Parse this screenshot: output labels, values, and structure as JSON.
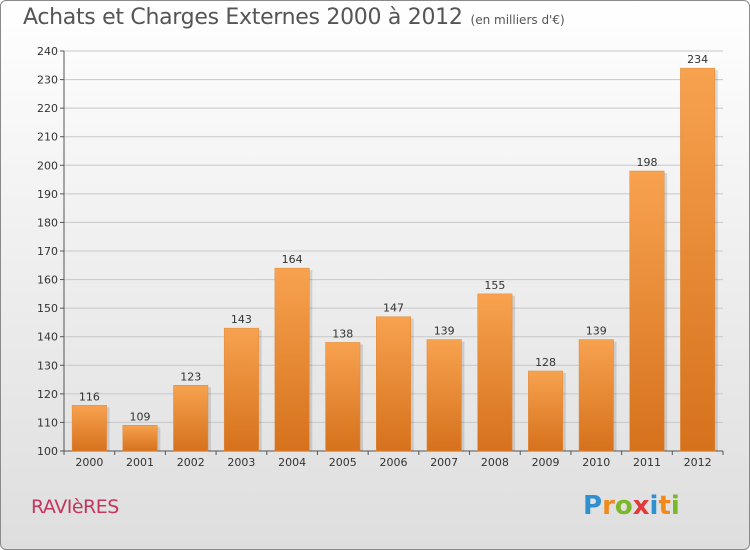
{
  "title": {
    "main": "Achats et Charges Externes 2000 à 2012",
    "unit": "(en milliers d'€)"
  },
  "commune": "RAVIèRES",
  "logo": {
    "letters": [
      "P",
      "r",
      "o",
      "x",
      "i",
      "t",
      "i"
    ],
    "colors": [
      "#2f8fd1",
      "#f08a1c",
      "#7ab829",
      "#e23a3a",
      "#2f8fd1",
      "#f08a1c",
      "#7ab829"
    ]
  },
  "colors": {
    "bar_top": "#f7a24f",
    "bar_bottom": "#d6711c",
    "grid": "#c8c8c8"
  },
  "chart_data": {
    "type": "bar",
    "title": "Achats et Charges Externes 2000 à 2012",
    "subtitle": "(en milliers d'€)",
    "categories": [
      "2000",
      "2001",
      "2002",
      "2003",
      "2004",
      "2005",
      "2006",
      "2007",
      "2008",
      "2009",
      "2010",
      "2011",
      "2012"
    ],
    "values": [
      116,
      109,
      123,
      143,
      164,
      138,
      147,
      139,
      155,
      128,
      139,
      198,
      234
    ],
    "ylim": [
      100,
      240
    ],
    "yticks": [
      100,
      110,
      120,
      130,
      140,
      150,
      160,
      170,
      180,
      190,
      200,
      210,
      220,
      230,
      240
    ],
    "grid": true,
    "xlabel": "",
    "ylabel": ""
  }
}
